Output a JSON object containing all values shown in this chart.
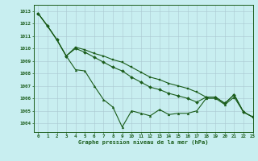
{
  "title": "Graphe pression niveau de la mer (hPa)",
  "bg_color": "#c8eef0",
  "grid_color": "#b0c8d0",
  "line_color": "#1a5c1a",
  "xlim": [
    -0.5,
    23
  ],
  "ylim": [
    1003.3,
    1013.5
  ],
  "yticks": [
    1004,
    1005,
    1006,
    1007,
    1008,
    1009,
    1010,
    1011,
    1012,
    1013
  ],
  "xticks": [
    0,
    1,
    2,
    3,
    4,
    5,
    6,
    7,
    8,
    9,
    10,
    11,
    12,
    13,
    14,
    15,
    16,
    17,
    18,
    19,
    20,
    21,
    22,
    23
  ],
  "series": [
    [
      1012.8,
      1011.8,
      1010.7,
      1009.4,
      1008.3,
      1008.2,
      1007.0,
      1005.9,
      1005.3,
      1003.7,
      1005.0,
      1004.8,
      1004.6,
      1005.1,
      1004.7,
      1004.8,
      1004.8,
      1005.0,
      1006.0,
      1006.0,
      1005.5,
      1006.1,
      1004.9,
      1004.5
    ],
    [
      1012.8,
      1011.8,
      1010.7,
      1009.4,
      1010.0,
      1009.7,
      1009.3,
      1008.9,
      1008.5,
      1008.2,
      1007.7,
      1007.3,
      1006.9,
      1006.7,
      1006.4,
      1006.2,
      1006.0,
      1005.7,
      1006.1,
      1006.1,
      1005.6,
      1006.3,
      1004.9,
      1004.5
    ],
    [
      1012.8,
      1011.8,
      1010.7,
      1009.4,
      1010.1,
      1009.9,
      1009.6,
      1009.4,
      1009.1,
      1008.9,
      1008.5,
      1008.1,
      1007.7,
      1007.5,
      1007.2,
      1007.0,
      1006.8,
      1006.5,
      1006.1,
      1006.1,
      1005.6,
      1006.3,
      1004.9,
      1004.5
    ]
  ]
}
